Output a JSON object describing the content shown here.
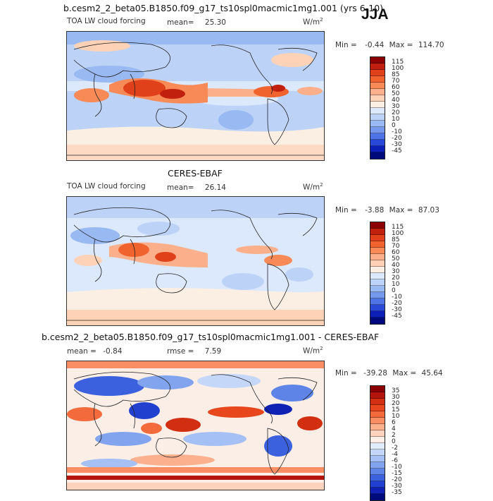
{
  "season": "JJA",
  "unit_label": "W/m",
  "unit_exp": "2",
  "panels": [
    {
      "title": "b.cesm2_2_beta05.B1850.f09_g17_ts10spl0macmic1mg1.001 (yrs 6-10)",
      "variable": "TOA LW cloud forcing",
      "stat_label": "mean=",
      "stat_value": "25.30",
      "min_label": "Min =",
      "min_value": "-0.44",
      "max_label": "Max =",
      "max_value": "114.70"
    },
    {
      "title": "CERES-EBAF",
      "variable": "TOA LW cloud forcing",
      "stat_label": "mean=",
      "stat_value": "26.14",
      "min_label": "Min =",
      "min_value": "-3.88",
      "max_label": "Max =",
      "max_value": "87.03"
    },
    {
      "title": "b.cesm2_2_beta05.B1850.f09_g17_ts10spl0macmic1mg1.001 - CERES-EBAF",
      "stat_label": "mean =",
      "stat_value": "-0.84",
      "rmse_label": "rmse =",
      "rmse_value": "7.59",
      "min_label": "Min =",
      "min_value": "-39.28",
      "max_label": "Max =",
      "max_value": "45.64"
    }
  ],
  "colorbars": {
    "field": {
      "ticks": [
        "115",
        "100",
        "85",
        "70",
        "60",
        "50",
        "40",
        "30",
        "20",
        "10",
        "0",
        "-10",
        "-20",
        "-30",
        "-45"
      ],
      "colors": [
        "#8b0000",
        "#c1200e",
        "#e0401a",
        "#f0622e",
        "#f78a56",
        "#fbb08b",
        "#fdd2b6",
        "#fbeee3",
        "#dce8fb",
        "#bcd3f7",
        "#98b9f2",
        "#7598ec",
        "#4e73e6",
        "#2a48d8",
        "#0c1fb8",
        "#000a7a"
      ]
    },
    "diff": {
      "ticks": [
        "35",
        "30",
        "20",
        "15",
        "10",
        "6",
        "4",
        "2",
        "0",
        "-2",
        "-4",
        "-6",
        "-10",
        "-15",
        "-20",
        "-30",
        "-35"
      ],
      "colors": [
        "#8b0000",
        "#b3140b",
        "#d22e12",
        "#e8471e",
        "#f36a3c",
        "#f98d63",
        "#fcb08e",
        "#fdd3bd",
        "#fbeee6",
        "#e0ebfc",
        "#c4d7f8",
        "#a4c0f4",
        "#82a4ee",
        "#5f84e8",
        "#3c61df",
        "#2240cf",
        "#0f22b4",
        "#000a7a"
      ]
    }
  }
}
